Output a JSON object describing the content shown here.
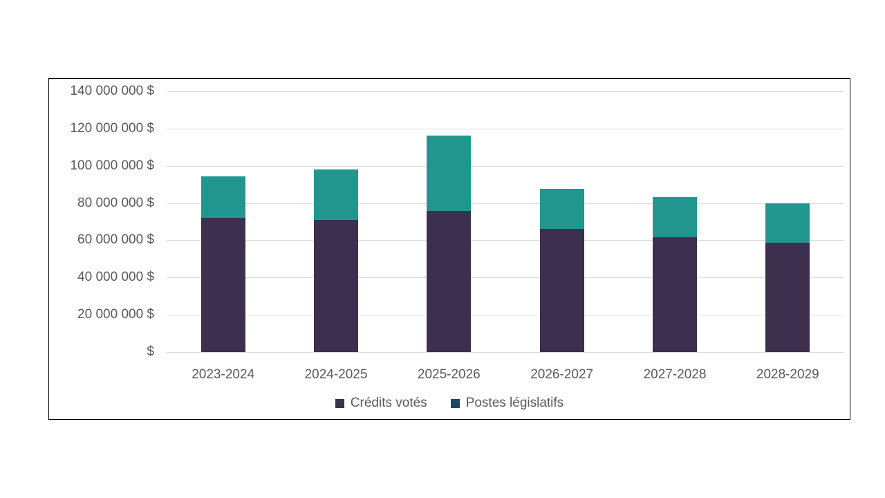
{
  "chart_data": {
    "type": "bar",
    "stacked": true,
    "title": "",
    "categories": [
      "2023-2024",
      "2024-2025",
      "2025-2026",
      "2026-2027",
      "2027-2028",
      "2028-2029"
    ],
    "series": [
      {
        "name": "Crédits votés",
        "color": "#3d2f4e",
        "legend_color": "#3d2f4e",
        "values": [
          72200000,
          71000000,
          75900000,
          66000000,
          61800000,
          58800000
        ]
      },
      {
        "name": "Postes législatifs",
        "color": "#21968f",
        "legend_color": "#1e4466",
        "values": [
          22200000,
          27100000,
          40500000,
          21700000,
          21500000,
          21100000
        ]
      }
    ],
    "totals": [
      94400000,
      98100000,
      116400000,
      87700000,
      83300000,
      79900000
    ],
    "ylim": [
      0,
      140000000
    ],
    "ytick_step": 20000000,
    "ytick_labels": [
      "$",
      "20 000 000 $",
      "40 000 000 $",
      "60 000 000 $",
      "80 000 000 $",
      "100 000 000 $",
      "120 000 000 $",
      "140 000 000 $"
    ],
    "grid": true,
    "gridline_color": "#d9d9d9",
    "axis_text_color": "#595959",
    "frame_border_color": "#000000",
    "background_color": "#ffffff",
    "legend_position": "bottom"
  }
}
